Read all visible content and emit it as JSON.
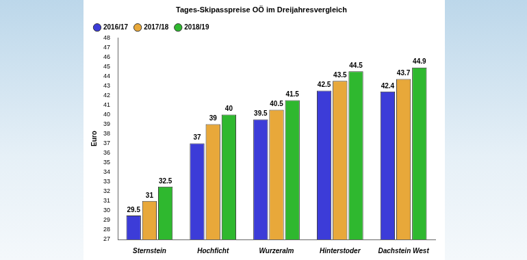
{
  "chart_data": {
    "type": "bar",
    "title": "Tages-Skipasspreise OÖ im Dreijahresvergleich",
    "y_label": "Euro",
    "categories": [
      "Sternstein",
      "Hochficht",
      "Wurzeralm",
      "Hinterstoder",
      "Dachstein West"
    ],
    "series": [
      {
        "name": "2016/17",
        "color": "#3c3cd8",
        "values": [
          29.5,
          37,
          39.5,
          42.5,
          42.4
        ]
      },
      {
        "name": "2017/18",
        "color": "#e8a83a",
        "values": [
          31,
          39,
          40.5,
          43.5,
          43.7
        ]
      },
      {
        "name": "2018/19",
        "color": "#2fb82f",
        "values": [
          32.5,
          40,
          41.5,
          44.5,
          44.9
        ]
      }
    ],
    "ylim": [
      27,
      48
    ],
    "yticks": [
      27,
      28,
      29,
      30,
      31,
      32,
      33,
      34,
      35,
      36,
      37,
      38,
      39,
      40,
      41,
      42,
      43,
      44,
      45,
      46,
      47,
      48
    ],
    "grid": false,
    "legend": "top",
    "data_labels": true
  }
}
